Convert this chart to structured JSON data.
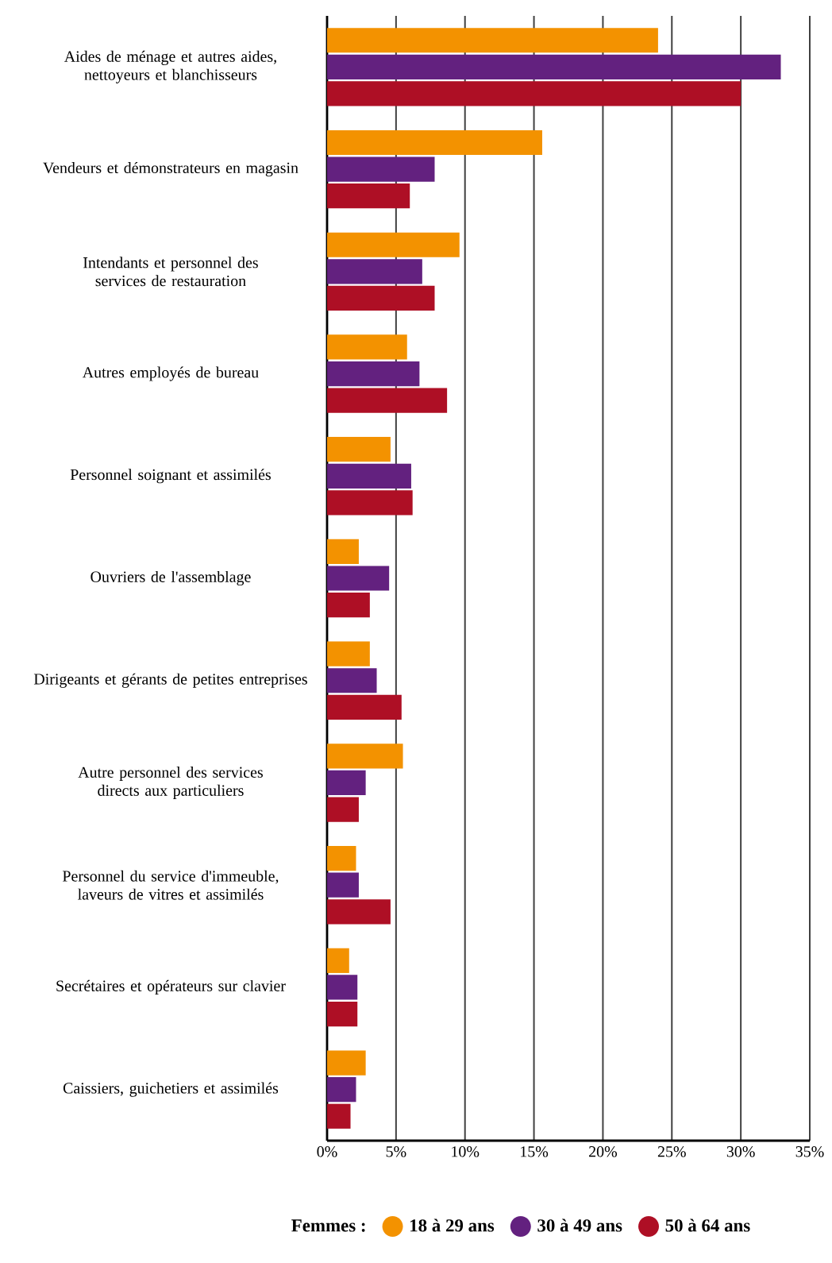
{
  "chart_data": {
    "type": "bar",
    "orientation": "horizontal",
    "categories": [
      "Aides de ménage et autres aides, nettoyeurs et blanchisseurs",
      "Vendeurs et démonstrateurs en magasin",
      "Intendants et personnel des services de restauration",
      "Autres employés de bureau",
      "Personnel soignant et assimilés",
      "Ouvriers de l'assemblage",
      "Dirigeants et gérants de petites entreprises",
      "Autre personnel des services directs aux particuliers",
      "Personnel du service d'immeuble, laveurs de vitres et assimilés",
      "Secrétaires et opérateurs sur clavier",
      "Caissiers, guichetiers et assimilés"
    ],
    "series": [
      {
        "name": "18 à 29 ans",
        "color": "#f39200",
        "values": [
          24.0,
          15.6,
          9.6,
          5.8,
          4.6,
          2.3,
          3.1,
          5.5,
          2.1,
          1.6,
          2.8
        ]
      },
      {
        "name": "30 à 49 ans",
        "color": "#63217f",
        "values": [
          32.9,
          7.8,
          6.9,
          6.7,
          6.1,
          4.5,
          3.6,
          2.8,
          2.3,
          2.2,
          2.1
        ]
      },
      {
        "name": "50 à 64 ans",
        "color": "#ae0f25",
        "values": [
          30.0,
          6.0,
          7.8,
          8.7,
          6.2,
          3.1,
          5.4,
          2.3,
          4.6,
          2.2,
          1.7
        ]
      }
    ],
    "xlim": [
      0,
      35
    ],
    "xticks": [
      {
        "value": 0,
        "label": "0%"
      },
      {
        "value": 5,
        "label": "5%"
      },
      {
        "value": 10,
        "label": "10%"
      },
      {
        "value": 15,
        "label": "15%"
      },
      {
        "value": 20,
        "label": "20%"
      },
      {
        "value": 25,
        "label": "25%"
      },
      {
        "value": 30,
        "label": "30%"
      },
      {
        "value": 35,
        "label": "35%"
      }
    ],
    "grid": "x",
    "legend": "bottom",
    "legend_title": "Femmes :"
  }
}
